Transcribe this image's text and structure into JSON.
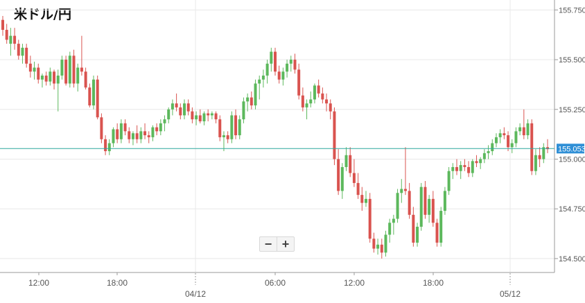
{
  "title": "米ドル/円",
  "zoom": {
    "minus_label": "−",
    "plus_label": "+"
  },
  "colors": {
    "up": "#5cb85c",
    "down": "#d9534f",
    "current_line": "#2fa79d",
    "price_tag": "#2f8fd6",
    "grid": "#e8e8e8",
    "axis": "#999999",
    "text": "#555555"
  },
  "chart_data": {
    "type": "candlestick",
    "title": "米ドル/円",
    "xlabel": "",
    "ylabel": "",
    "ylim": [
      154.43,
      155.8
    ],
    "y_ticks": [
      "155.750",
      "155.500",
      "155.250",
      "155.000",
      "154.750",
      "154.500"
    ],
    "x_ticks": [
      "12:00",
      "18:00",
      "06:00",
      "12:00",
      "18:00"
    ],
    "date_ticks": [
      "04/12",
      "05/12"
    ],
    "current_price": "155.053",
    "grid": true,
    "candle_interval_minutes": 15,
    "candles": [
      [
        155.7,
        155.72,
        155.62,
        155.65
      ],
      [
        155.65,
        155.68,
        155.58,
        155.6
      ],
      [
        155.58,
        155.66,
        155.52,
        155.62
      ],
      [
        155.62,
        155.66,
        155.55,
        155.58
      ],
      [
        155.58,
        155.6,
        155.5,
        155.52
      ],
      [
        155.52,
        155.58,
        155.48,
        155.56
      ],
      [
        155.56,
        155.58,
        155.46,
        155.48
      ],
      [
        155.48,
        155.52,
        155.41,
        155.44
      ],
      [
        155.44,
        155.49,
        155.4,
        155.46
      ],
      [
        155.46,
        155.48,
        155.38,
        155.4
      ],
      [
        155.4,
        155.43,
        155.36,
        155.42
      ],
      [
        155.42,
        155.44,
        155.37,
        155.39
      ],
      [
        155.39,
        155.46,
        155.37,
        155.44
      ],
      [
        155.44,
        155.45,
        155.35,
        155.38
      ],
      [
        155.38,
        155.45,
        155.24,
        155.42
      ],
      [
        155.42,
        155.52,
        155.4,
        155.5
      ],
      [
        155.5,
        155.52,
        155.37,
        155.38
      ],
      [
        155.38,
        155.54,
        155.36,
        155.52
      ],
      [
        155.52,
        155.55,
        155.36,
        155.38
      ],
      [
        155.38,
        155.48,
        155.34,
        155.46
      ],
      [
        155.46,
        155.62,
        155.42,
        155.44
      ],
      [
        155.44,
        155.46,
        155.35,
        155.36
      ],
      [
        155.36,
        155.38,
        155.26,
        155.27
      ],
      [
        155.27,
        155.42,
        155.25,
        155.4
      ],
      [
        155.4,
        155.42,
        155.2,
        155.21
      ],
      [
        155.21,
        155.23,
        155.08,
        155.1
      ],
      [
        155.1,
        155.12,
        155.02,
        155.04
      ],
      [
        155.04,
        155.1,
        155.02,
        155.08
      ],
      [
        155.08,
        155.16,
        155.06,
        155.15
      ],
      [
        155.15,
        155.18,
        155.08,
        155.1
      ],
      [
        155.1,
        155.2,
        155.08,
        155.18
      ],
      [
        155.18,
        155.2,
        155.12,
        155.14
      ],
      [
        155.14,
        155.16,
        155.08,
        155.1
      ],
      [
        155.1,
        155.14,
        155.07,
        155.13
      ],
      [
        155.13,
        155.17,
        155.08,
        155.1
      ],
      [
        155.1,
        155.16,
        155.08,
        155.14
      ],
      [
        155.14,
        155.18,
        155.1,
        155.12
      ],
      [
        155.12,
        155.14,
        155.08,
        155.11
      ],
      [
        155.11,
        155.17,
        155.09,
        155.16
      ],
      [
        155.16,
        155.18,
        155.12,
        155.14
      ],
      [
        155.14,
        155.2,
        155.12,
        155.18
      ],
      [
        155.18,
        155.22,
        155.14,
        155.2
      ],
      [
        155.2,
        155.26,
        155.18,
        155.25
      ],
      [
        155.25,
        155.3,
        155.22,
        155.28
      ],
      [
        155.28,
        155.33,
        155.24,
        155.26
      ],
      [
        155.26,
        155.28,
        155.2,
        155.22
      ],
      [
        155.22,
        155.3,
        155.2,
        155.28
      ],
      [
        155.28,
        155.3,
        155.22,
        155.24
      ],
      [
        155.24,
        155.26,
        155.18,
        155.2
      ],
      [
        155.2,
        155.24,
        155.17,
        155.22
      ],
      [
        155.22,
        155.25,
        155.18,
        155.19
      ],
      [
        155.19,
        155.24,
        155.17,
        155.23
      ],
      [
        155.23,
        155.25,
        155.19,
        155.22
      ],
      [
        155.22,
        155.24,
        155.2,
        155.23
      ],
      [
        155.23,
        155.24,
        155.18,
        155.2
      ],
      [
        155.2,
        155.22,
        155.09,
        155.11
      ],
      [
        155.11,
        155.14,
        155.04,
        155.12
      ],
      [
        155.12,
        155.14,
        155.08,
        155.1
      ],
      [
        155.1,
        155.24,
        155.08,
        155.22
      ],
      [
        155.22,
        155.25,
        155.1,
        155.12
      ],
      [
        155.12,
        155.22,
        155.1,
        155.2
      ],
      [
        155.2,
        155.31,
        155.18,
        155.29
      ],
      [
        155.29,
        155.33,
        155.24,
        155.31
      ],
      [
        155.31,
        155.34,
        155.25,
        155.27
      ],
      [
        155.27,
        155.4,
        155.25,
        155.38
      ],
      [
        155.38,
        155.42,
        155.3,
        155.4
      ],
      [
        155.4,
        155.45,
        155.36,
        155.42
      ],
      [
        155.42,
        155.5,
        155.38,
        155.48
      ],
      [
        155.48,
        155.56,
        155.44,
        155.54
      ],
      [
        155.54,
        155.56,
        155.42,
        155.44
      ],
      [
        155.44,
        155.47,
        155.38,
        155.4
      ],
      [
        155.4,
        155.46,
        155.37,
        155.44
      ],
      [
        155.44,
        155.5,
        155.41,
        155.48
      ],
      [
        155.48,
        155.52,
        155.44,
        155.5
      ],
      [
        155.5,
        155.53,
        155.43,
        155.45
      ],
      [
        155.45,
        155.48,
        155.3,
        155.32
      ],
      [
        155.32,
        155.36,
        155.24,
        155.26
      ],
      [
        155.26,
        155.3,
        155.2,
        155.28
      ],
      [
        155.28,
        155.34,
        155.26,
        155.3
      ],
      [
        155.3,
        155.38,
        155.28,
        155.37
      ],
      [
        155.37,
        155.4,
        155.31,
        155.33
      ],
      [
        155.33,
        155.36,
        155.28,
        155.3
      ],
      [
        155.3,
        155.33,
        155.24,
        155.28
      ],
      [
        155.28,
        155.3,
        155.2,
        155.24
      ],
      [
        155.24,
        155.26,
        154.97,
        155.0
      ],
      [
        155.0,
        155.05,
        154.82,
        154.84
      ],
      [
        154.84,
        154.98,
        154.8,
        154.96
      ],
      [
        154.96,
        155.06,
        154.94,
        155.02
      ],
      [
        155.02,
        155.06,
        154.91,
        154.93
      ],
      [
        154.93,
        155.0,
        154.86,
        154.88
      ],
      [
        154.88,
        154.93,
        154.8,
        154.82
      ],
      [
        154.82,
        154.86,
        154.74,
        154.78
      ],
      [
        154.78,
        154.84,
        154.76,
        154.8
      ],
      [
        154.8,
        154.83,
        154.58,
        154.6
      ],
      [
        154.6,
        154.63,
        154.53,
        154.55
      ],
      [
        154.55,
        154.6,
        154.52,
        154.57
      ],
      [
        154.57,
        154.6,
        154.5,
        154.53
      ],
      [
        154.53,
        154.64,
        154.51,
        154.62
      ],
      [
        154.62,
        154.7,
        154.58,
        154.68
      ],
      [
        154.68,
        154.72,
        154.62,
        154.7
      ],
      [
        154.7,
        154.85,
        154.68,
        154.83
      ],
      [
        154.83,
        154.9,
        154.78,
        154.85
      ],
      [
        154.85,
        155.06,
        154.82,
        154.84
      ],
      [
        154.84,
        154.88,
        154.7,
        154.72
      ],
      [
        154.72,
        154.76,
        154.56,
        154.58
      ],
      [
        154.58,
        154.68,
        154.56,
        154.66
      ],
      [
        154.66,
        154.88,
        154.64,
        154.86
      ],
      [
        154.86,
        154.89,
        154.7,
        154.72
      ],
      [
        154.72,
        154.82,
        154.68,
        154.8
      ],
      [
        154.8,
        154.84,
        154.66,
        154.68
      ],
      [
        154.68,
        154.7,
        154.56,
        154.58
      ],
      [
        154.58,
        154.76,
        154.56,
        154.74
      ],
      [
        154.74,
        154.86,
        154.72,
        154.84
      ],
      [
        154.84,
        154.96,
        154.82,
        154.94
      ],
      [
        154.94,
        154.98,
        154.9,
        154.96
      ],
      [
        154.96,
        155.0,
        154.92,
        154.94
      ],
      [
        154.94,
        154.99,
        154.9,
        154.97
      ],
      [
        154.97,
        155.0,
        154.94,
        154.96
      ],
      [
        154.96,
        154.99,
        154.91,
        154.93
      ],
      [
        154.93,
        155.0,
        154.91,
        154.99
      ],
      [
        154.99,
        155.02,
        154.96,
        154.98
      ],
      [
        154.98,
        155.01,
        154.95,
        155.0
      ],
      [
        155.0,
        155.05,
        154.98,
        155.03
      ],
      [
        155.03,
        155.07,
        155.0,
        155.04
      ],
      [
        155.04,
        155.1,
        155.02,
        155.08
      ],
      [
        155.08,
        155.13,
        155.06,
        155.11
      ],
      [
        155.11,
        155.15,
        155.08,
        155.13
      ],
      [
        155.13,
        155.16,
        155.1,
        155.12
      ],
      [
        155.12,
        155.14,
        155.04,
        155.06
      ],
      [
        155.06,
        155.1,
        155.03,
        155.08
      ],
      [
        155.08,
        155.16,
        155.06,
        155.14
      ],
      [
        155.14,
        155.18,
        155.12,
        155.16
      ],
      [
        155.16,
        155.25,
        155.1,
        155.12
      ],
      [
        155.12,
        155.2,
        155.1,
        155.18
      ],
      [
        155.18,
        155.2,
        154.92,
        154.94
      ],
      [
        154.94,
        155.05,
        154.92,
        155.02
      ],
      [
        155.02,
        155.06,
        154.96,
        155.0
      ],
      [
        155.0,
        155.08,
        154.98,
        155.06
      ],
      [
        155.06,
        155.1,
        155.03,
        155.05
      ]
    ]
  }
}
